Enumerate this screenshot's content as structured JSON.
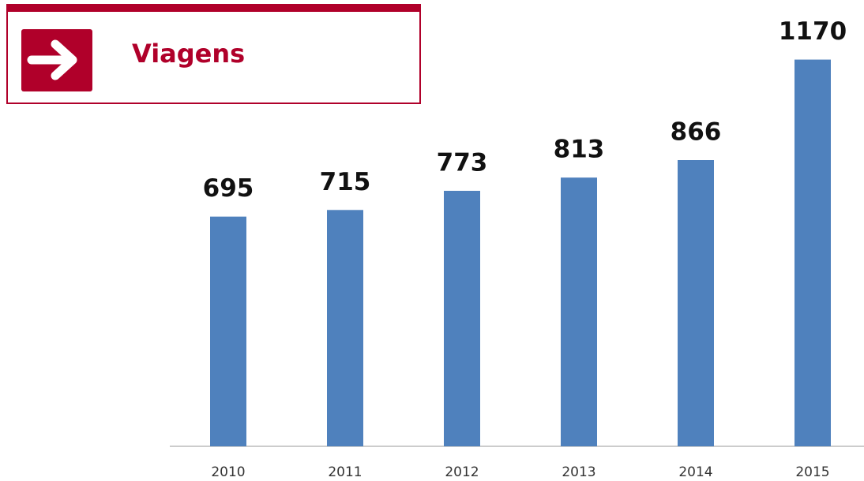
{
  "chart_data": {
    "type": "bar",
    "title": "Viagens",
    "categories": [
      "2010",
      "2011",
      "2012",
      "2013",
      "2014",
      "2015"
    ],
    "values": [
      695,
      715,
      773,
      813,
      866,
      1170
    ],
    "color": "#4f81bd",
    "ylim": [
      0,
      1200
    ]
  }
}
